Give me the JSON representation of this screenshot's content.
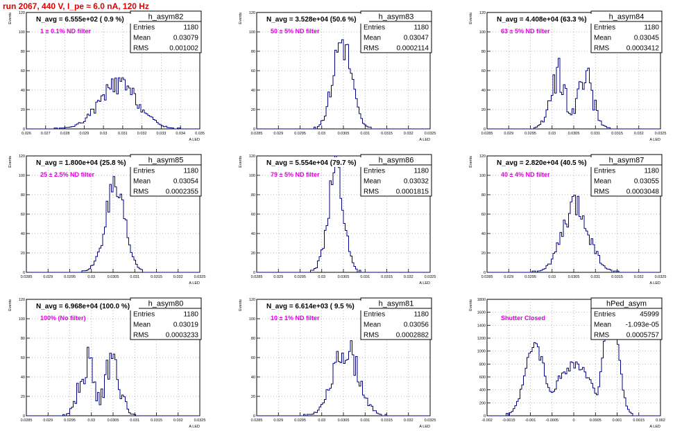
{
  "page_title": "run 2067,   440 V, I_pe ≈ 6.0 nA, 120 Hz",
  "colors": {
    "histogram": "#000080",
    "title": "#e00000",
    "annotation": "#e000e0",
    "axis": "#000000",
    "grid": "#999999"
  },
  "chart_data": [
    {
      "type": "histogram",
      "name": "h_asym82",
      "navg": "N_avg = 6.555e+02 ( 0.9 %)",
      "filter": "1 ± 0.1% ND filter",
      "stats": [
        [
          "Entries",
          "1180"
        ],
        [
          "Mean",
          "0.03079"
        ],
        [
          "RMS",
          "0.001002"
        ]
      ],
      "ylabel": "Events",
      "xlabel": "A_LED",
      "xlim": [
        0.026,
        0.035
      ],
      "ylim": [
        0,
        120
      ],
      "xticks": [
        "0.026",
        "0.027",
        "0.028",
        "0.029",
        "0.03",
        "0.031",
        "0.032",
        "0.033",
        "0.034",
        "0.035"
      ],
      "yticks": [
        "0",
        "20",
        "40",
        "60",
        "80",
        "100",
        "120"
      ],
      "mean": 0.03079,
      "rms": 0.001002,
      "peak": 45,
      "seed": 82,
      "grid": true
    },
    {
      "type": "histogram",
      "name": "h_asym83",
      "navg": "N_avg = 3.528e+04 (50.6 %)",
      "filter": "50 ± 5% ND filter",
      "stats": [
        [
          "Entries",
          "1180"
        ],
        [
          "Mean",
          "0.03047"
        ],
        [
          "RMS",
          "0.0002114"
        ]
      ],
      "ylabel": "Events",
      "xlabel": "A_LED",
      "xlim": [
        0.0285,
        0.0325
      ],
      "ylim": [
        0,
        120
      ],
      "xticks": [
        "0.0285",
        "0.029",
        "0.0295",
        "0.03",
        "0.0305",
        "0.031",
        "0.0315",
        "0.032",
        "0.0325"
      ],
      "yticks": [
        "0",
        "20",
        "40",
        "60",
        "80",
        "100",
        "120"
      ],
      "mean": 0.03047,
      "rms": 0.0002114,
      "peak": 92,
      "seed": 83,
      "grid": true
    },
    {
      "type": "histogram",
      "name": "h_asym84",
      "navg": "N_avg = 4.408e+04 (63.3 %)",
      "filter": "63 ± 5% ND filter",
      "stats": [
        [
          "Entries",
          "1180"
        ],
        [
          "Mean",
          "0.03045"
        ],
        [
          "RMS",
          "0.0003412"
        ]
      ],
      "ylabel": "Events",
      "xlabel": "A_LED",
      "xlim": [
        0.0285,
        0.0325
      ],
      "ylim": [
        0,
        120
      ],
      "xticks": [
        "0.0285",
        "0.029",
        "0.0295",
        "0.03",
        "0.0305",
        "0.031",
        "0.0315",
        "0.032",
        "0.0325"
      ],
      "yticks": [
        "0",
        "20",
        "40",
        "60",
        "80",
        "100",
        "120"
      ],
      "mean": 0.03045,
      "rms": 0.0003412,
      "peak": 62,
      "seed": 84,
      "grid": true,
      "bimodal": true
    },
    {
      "type": "histogram",
      "name": "h_asym85",
      "navg": "N_avg = 1.800e+04 (25.8 %)",
      "filter": "25 ± 2.5% ND filter",
      "stats": [
        [
          "Entries",
          "1180"
        ],
        [
          "Mean",
          "0.03054"
        ],
        [
          "RMS",
          "0.0002355"
        ]
      ],
      "ylabel": "Events",
      "xlabel": "A_LED",
      "xlim": [
        0.0285,
        0.0325
      ],
      "ylim": [
        0,
        120
      ],
      "xticks": [
        "0.0285",
        "0.029",
        "0.0295",
        "0.03",
        "0.0305",
        "0.031",
        "0.0315",
        "0.032",
        "0.0325"
      ],
      "yticks": [
        "0",
        "20",
        "40",
        "60",
        "80",
        "100",
        "120"
      ],
      "mean": 0.03054,
      "rms": 0.0002355,
      "peak": 80,
      "seed": 85,
      "grid": true
    },
    {
      "type": "histogram",
      "name": "h_asym86",
      "navg": "N_avg = 5.554e+04 (79.7 %)",
      "filter": "79 ± 5% ND filter",
      "stats": [
        [
          "Entries",
          "1180"
        ],
        [
          "Mean",
          "0.03032"
        ],
        [
          "RMS",
          "0.0001815"
        ]
      ],
      "ylabel": "Events",
      "xlabel": "A_LED",
      "xlim": [
        0.0285,
        0.0325
      ],
      "ylim": [
        0,
        120
      ],
      "xticks": [
        "0.0285",
        "0.029",
        "0.0295",
        "0.03",
        "0.0305",
        "0.031",
        "0.0315",
        "0.032",
        "0.0325"
      ],
      "yticks": [
        "0",
        "20",
        "40",
        "60",
        "80",
        "100",
        "120"
      ],
      "mean": 0.03032,
      "rms": 0.0001815,
      "peak": 108,
      "seed": 86,
      "grid": true
    },
    {
      "type": "histogram",
      "name": "h_asym87",
      "navg": "N_avg = 2.820e+04 (40.5 %)",
      "filter": "40 ± 4% ND filter",
      "stats": [
        [
          "Entries",
          "1180"
        ],
        [
          "Mean",
          "0.03055"
        ],
        [
          "RMS",
          "0.0003048"
        ]
      ],
      "ylabel": "Events",
      "xlabel": "A_LED",
      "xlim": [
        0.0285,
        0.0325
      ],
      "ylim": [
        0,
        120
      ],
      "xticks": [
        "0.0285",
        "0.029",
        "0.0295",
        "0.03",
        "0.0305",
        "0.031",
        "0.0315",
        "0.032",
        "0.0325"
      ],
      "yticks": [
        "0",
        "20",
        "40",
        "60",
        "80",
        "100",
        "120"
      ],
      "mean": 0.03055,
      "rms": 0.0003048,
      "peak": 68,
      "seed": 87,
      "grid": true
    },
    {
      "type": "histogram",
      "name": "h_asym80",
      "navg": "N_avg = 6.968e+04 (100.0 %)",
      "filter": "100% (No filter)",
      "stats": [
        [
          "Entries",
          "1180"
        ],
        [
          "Mean",
          "0.03019"
        ],
        [
          "RMS",
          "0.0003233"
        ]
      ],
      "ylabel": "Events",
      "xlabel": "A_LED",
      "xlim": [
        0.0285,
        0.0325
      ],
      "ylim": [
        0,
        120
      ],
      "xticks": [
        "0.0285",
        "0.029",
        "0.0295",
        "0.03",
        "0.0305",
        "0.031",
        "0.0315",
        "0.032",
        "0.0325"
      ],
      "yticks": [
        "0",
        "20",
        "40",
        "60",
        "80",
        "100",
        "120"
      ],
      "mean": 0.03019,
      "rms": 0.0003233,
      "peak": 62,
      "seed": 80,
      "grid": true,
      "bimodal": true
    },
    {
      "type": "histogram",
      "name": "h_asym81",
      "navg": "N_avg = 6.614e+03 ( 9.5 %)",
      "filter": "10 ± 1% ND filter",
      "stats": [
        [
          "Entries",
          "1180"
        ],
        [
          "Mean",
          "0.03056"
        ],
        [
          "RMS",
          "0.0002882"
        ]
      ],
      "ylabel": "Events",
      "xlabel": "A_LED",
      "xlim": [
        0.0285,
        0.0325
      ],
      "ylim": [
        0,
        120
      ],
      "xticks": [
        "0.0285",
        "0.029",
        "0.0295",
        "0.03",
        "0.0305",
        "0.031",
        "0.0315",
        "0.032",
        "0.0325"
      ],
      "yticks": [
        "0",
        "20",
        "40",
        "60",
        "80",
        "100",
        "120"
      ],
      "mean": 0.03056,
      "rms": 0.0002882,
      "peak": 70,
      "seed": 81,
      "grid": true
    },
    {
      "type": "histogram",
      "name": "hPed_asym",
      "navg": "",
      "filter": "Shutter Closed",
      "stats": [
        [
          "Entries",
          "45999"
        ],
        [
          "Mean",
          "-1.093e-05"
        ],
        [
          "RMS",
          "0.0005757"
        ]
      ],
      "ylabel": "Events",
      "xlabel": "A_LED",
      "xlim": [
        -0.002,
        0.002
      ],
      "ylim": [
        0,
        1800
      ],
      "xticks": [
        "-0.002",
        "-0.0015",
        "-0.001",
        "-0.0005",
        "0",
        "0.0005",
        "0.001",
        "0.0015",
        "0.002"
      ],
      "yticks": [
        "0",
        "200",
        "400",
        "600",
        "800",
        "1000",
        "1200",
        "1400",
        "1600",
        "1800"
      ],
      "mean": -1.093e-05,
      "rms": 0.0005757,
      "peak": 1780,
      "seed": 99,
      "grid": true,
      "pedestal": true
    }
  ]
}
